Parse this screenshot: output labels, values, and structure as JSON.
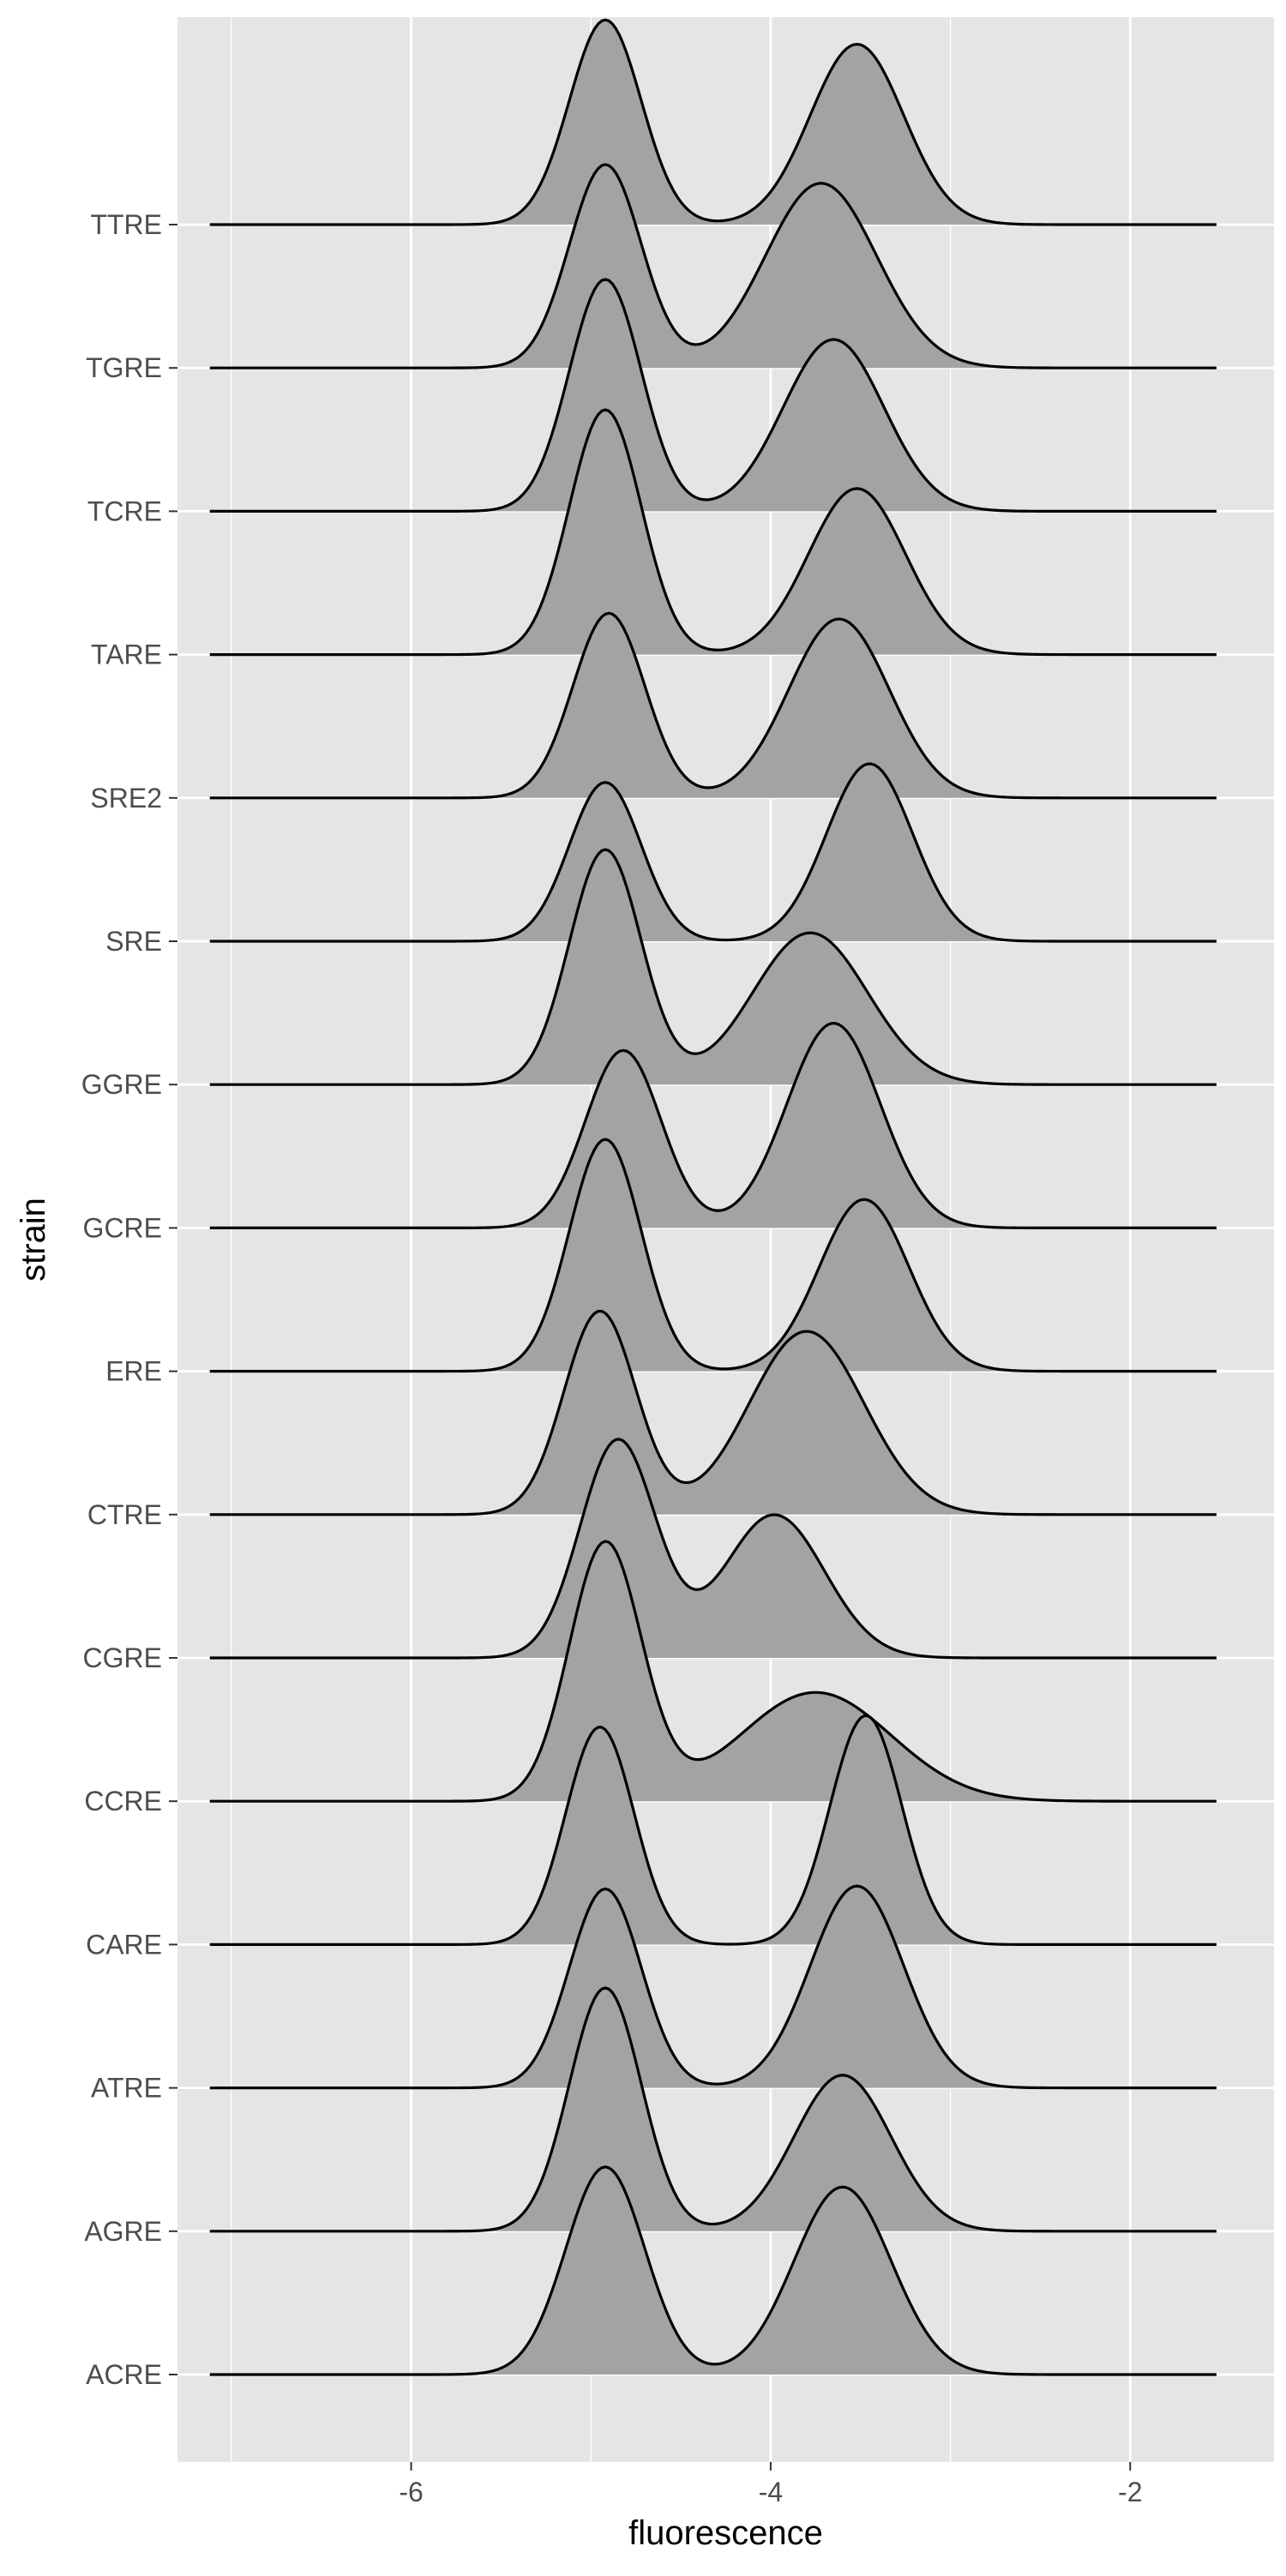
{
  "chart_data": {
    "type": "ridgeline",
    "title": "",
    "xlabel": "fluorescence",
    "ylabel": "strain",
    "xlim": [
      -7.3,
      -1.2
    ],
    "x_ticks": [
      -6,
      -4,
      -2
    ],
    "x_tick_labels": [
      "-6",
      "-4",
      "-2"
    ],
    "x_range_data": [
      -7.12,
      -1.52
    ],
    "grid": true,
    "categories": [
      "ACRE",
      "AGRE",
      "ATRE",
      "CARE",
      "CCRE",
      "CGRE",
      "CTRE",
      "ERE",
      "GCRE",
      "GGRE",
      "SRE",
      "SRE2",
      "TARE",
      "TCRE",
      "TGRE",
      "TTRE"
    ],
    "series": [
      {
        "name": "ACRE",
        "peaks": [
          {
            "mu": -4.92,
            "sigma": 0.22,
            "h": 1.45
          },
          {
            "mu": -3.6,
            "sigma": 0.27,
            "h": 1.31
          }
        ]
      },
      {
        "name": "AGRE",
        "peaks": [
          {
            "mu": -4.92,
            "sigma": 0.2,
            "h": 1.7
          },
          {
            "mu": -3.6,
            "sigma": 0.27,
            "h": 1.09
          }
        ]
      },
      {
        "name": "ATRE",
        "peaks": [
          {
            "mu": -4.92,
            "sigma": 0.2,
            "h": 1.39
          },
          {
            "mu": -3.52,
            "sigma": 0.26,
            "h": 1.41
          }
        ]
      },
      {
        "name": "CARE",
        "peaks": [
          {
            "mu": -4.95,
            "sigma": 0.19,
            "h": 1.52
          },
          {
            "mu": -3.47,
            "sigma": 0.2,
            "h": 1.6
          }
        ]
      },
      {
        "name": "CCRE",
        "peaks": [
          {
            "mu": -4.92,
            "sigma": 0.2,
            "h": 1.8
          },
          {
            "mu": -3.75,
            "sigma": 0.42,
            "h": 0.76
          }
        ]
      },
      {
        "name": "CGRE",
        "peaks": [
          {
            "mu": -4.85,
            "sigma": 0.21,
            "h": 1.52
          },
          {
            "mu": -3.98,
            "sigma": 0.28,
            "h": 1.0
          }
        ]
      },
      {
        "name": "CTRE",
        "peaks": [
          {
            "mu": -4.95,
            "sigma": 0.2,
            "h": 1.42
          },
          {
            "mu": -3.8,
            "sigma": 0.32,
            "h": 1.28
          }
        ]
      },
      {
        "name": "ERE",
        "peaks": [
          {
            "mu": -4.92,
            "sigma": 0.2,
            "h": 1.62
          },
          {
            "mu": -3.48,
            "sigma": 0.25,
            "h": 1.2
          }
        ]
      },
      {
        "name": "GCRE",
        "peaks": [
          {
            "mu": -4.82,
            "sigma": 0.21,
            "h": 1.24
          },
          {
            "mu": -3.65,
            "sigma": 0.26,
            "h": 1.43
          }
        ]
      },
      {
        "name": "GGRE",
        "peaks": [
          {
            "mu": -4.92,
            "sigma": 0.2,
            "h": 1.64
          },
          {
            "mu": -3.78,
            "sigma": 0.32,
            "h": 1.06
          }
        ]
      },
      {
        "name": "SRE",
        "peaks": [
          {
            "mu": -4.92,
            "sigma": 0.2,
            "h": 1.11
          },
          {
            "mu": -3.45,
            "sigma": 0.24,
            "h": 1.24
          }
        ]
      },
      {
        "name": "SRE2",
        "peaks": [
          {
            "mu": -4.9,
            "sigma": 0.2,
            "h": 1.29
          },
          {
            "mu": -3.62,
            "sigma": 0.28,
            "h": 1.25
          }
        ]
      },
      {
        "name": "TARE",
        "peaks": [
          {
            "mu": -4.92,
            "sigma": 0.2,
            "h": 1.71
          },
          {
            "mu": -3.52,
            "sigma": 0.27,
            "h": 1.16
          }
        ]
      },
      {
        "name": "TCRE",
        "peaks": [
          {
            "mu": -4.92,
            "sigma": 0.2,
            "h": 1.62
          },
          {
            "mu": -3.65,
            "sigma": 0.28,
            "h": 1.2
          }
        ]
      },
      {
        "name": "TGRE",
        "peaks": [
          {
            "mu": -4.92,
            "sigma": 0.2,
            "h": 1.42
          },
          {
            "mu": -3.72,
            "sigma": 0.31,
            "h": 1.29
          }
        ]
      },
      {
        "name": "TTRE",
        "peaks": [
          {
            "mu": -4.92,
            "sigma": 0.2,
            "h": 1.43
          },
          {
            "mu": -3.52,
            "sigma": 0.26,
            "h": 1.26
          }
        ]
      }
    ],
    "colors": {
      "panel": "#e5e5e5",
      "grid": "#ffffff",
      "fill": "#a3a3a3",
      "line": "#000000",
      "tick_text": "#4d4d4d",
      "axis_title": "#000000"
    }
  }
}
